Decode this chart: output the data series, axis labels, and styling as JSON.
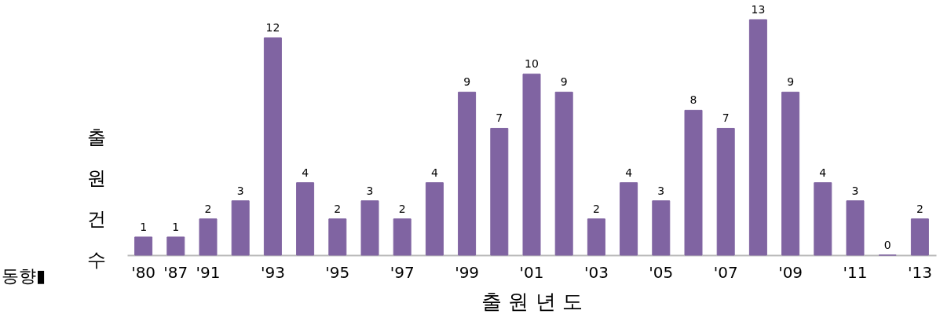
{
  "chart_data": {
    "type": "bar",
    "xlabel": "출 원 년 도",
    "ylabel": "출원건수",
    "annotations": [
      "동향▮"
    ],
    "categories": [
      "'80",
      "'87",
      "'91",
      null,
      "'93",
      null,
      "'95",
      null,
      "'97",
      null,
      "'99",
      null,
      "'01",
      null,
      "'03",
      null,
      "'05",
      null,
      "'07",
      null,
      "'09",
      null,
      "'11",
      null,
      "'13"
    ],
    "values": [
      1,
      1,
      2,
      3,
      12,
      4,
      2,
      3,
      2,
      4,
      9,
      7,
      10,
      9,
      2,
      4,
      3,
      8,
      7,
      13,
      9,
      4,
      3,
      0,
      2
    ],
    "color": "#8064a2",
    "data_labels": true
  }
}
